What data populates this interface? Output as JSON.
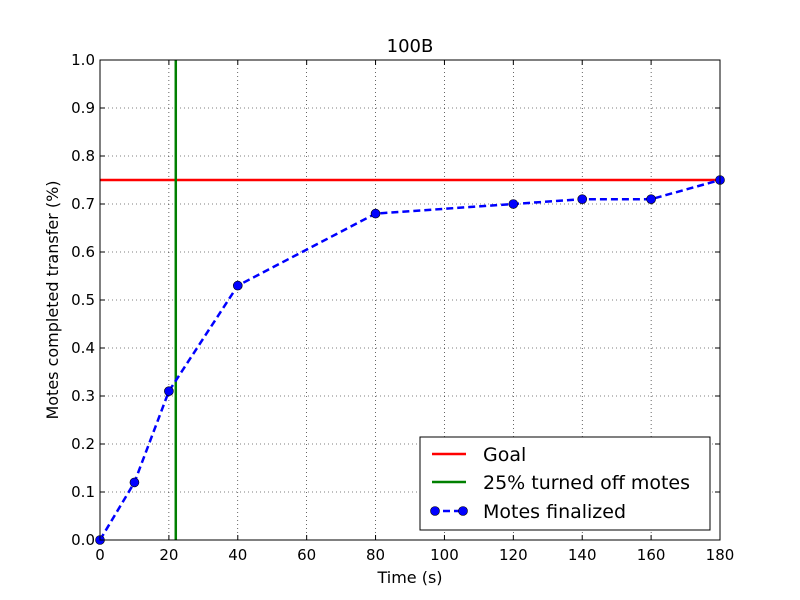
{
  "chart_data": {
    "type": "line",
    "title": "100B",
    "xlabel": "Time (s)",
    "ylabel": "Motes completed transfer (%)",
    "xlim": [
      0,
      180
    ],
    "ylim": [
      0.0,
      1.0
    ],
    "grid": true,
    "x_ticks": [
      0,
      20,
      40,
      60,
      80,
      100,
      120,
      140,
      160,
      180
    ],
    "x_tick_labels": [
      "0",
      "20",
      "40",
      "60",
      "80",
      "100",
      "120",
      "140",
      "160",
      "180"
    ],
    "y_ticks": [
      0.0,
      0.1,
      0.2,
      0.3,
      0.4,
      0.5,
      0.6,
      0.7,
      0.8,
      0.9,
      1.0
    ],
    "y_tick_labels": [
      "0.0",
      "0.1",
      "0.2",
      "0.3",
      "0.4",
      "0.5",
      "0.6",
      "0.7",
      "0.8",
      "0.9",
      "1.0"
    ],
    "series": [
      {
        "name": "Goal",
        "kind": "hline",
        "y": 0.75,
        "color": "#ff0000",
        "style": "solid"
      },
      {
        "name": "25% turned off motes",
        "kind": "vline",
        "x": 22,
        "color": "#008000",
        "style": "solid"
      },
      {
        "name": "Motes finalized",
        "kind": "line",
        "color": "#0000ff",
        "style": "dashed",
        "marker": "circle",
        "x": [
          0,
          10,
          20,
          40,
          80,
          120,
          140,
          160,
          180
        ],
        "y": [
          0.0,
          0.12,
          0.31,
          0.53,
          0.68,
          0.7,
          0.71,
          0.71,
          0.75
        ]
      }
    ],
    "legend": {
      "placement": "lower-right",
      "entries": [
        "Goal",
        "25% turned off motes",
        "Motes finalized"
      ]
    }
  }
}
